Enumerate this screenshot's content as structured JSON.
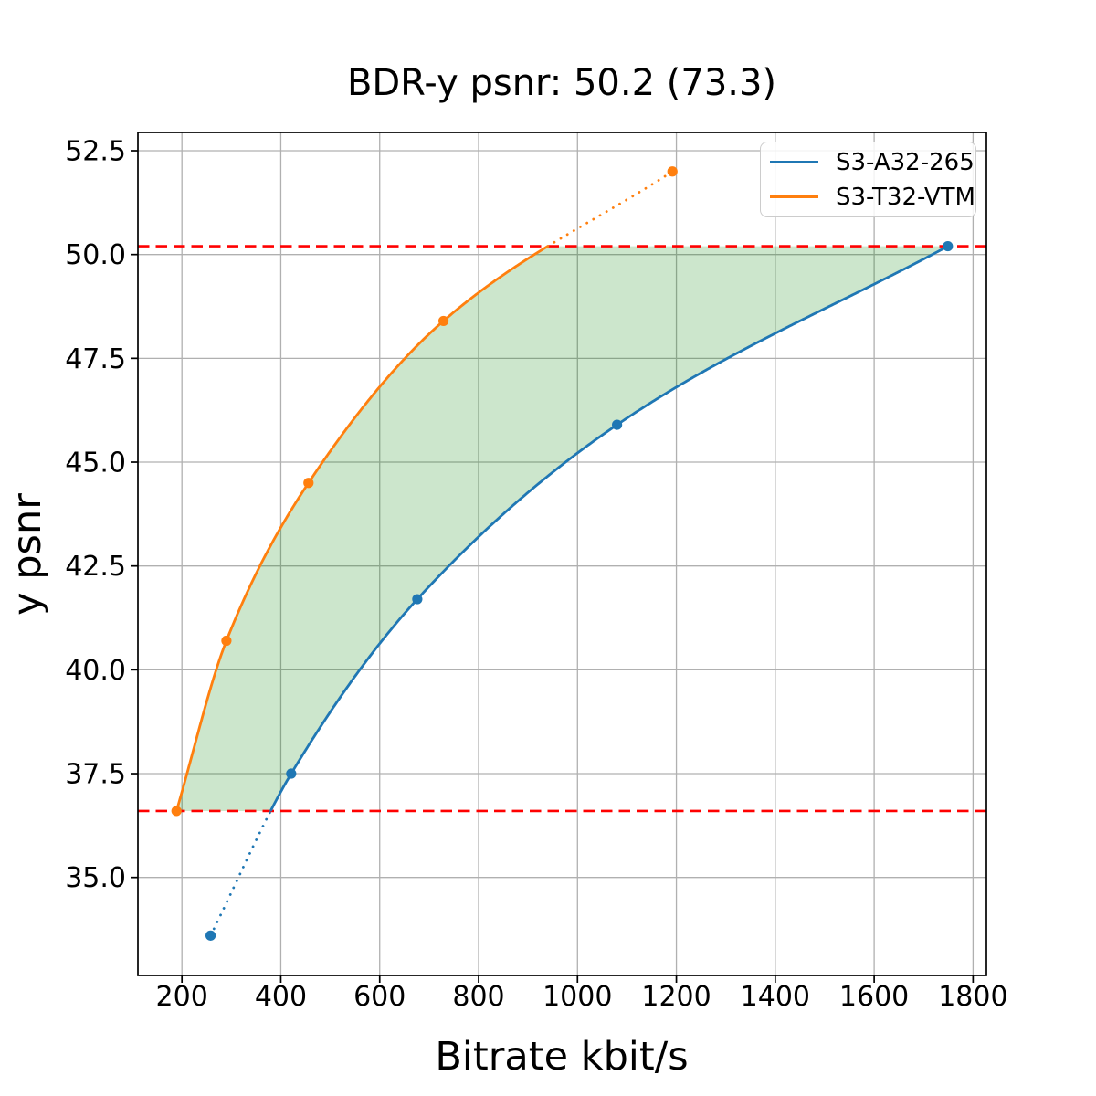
{
  "page": {
    "background": "#ffffff"
  },
  "chart_data": {
    "type": "line",
    "title": "BDR-y psnr: 50.2 (73.3)",
    "xlabel": "Bitrate kbit/s",
    "ylabel": "y psnr",
    "xlim": [
      111,
      1827
    ],
    "ylim": [
      32.64,
      52.94
    ],
    "grid": true,
    "grid_color": "#b0b0b0",
    "axis_color": "#000000",
    "x_ticks": [
      200,
      400,
      600,
      800,
      1000,
      1200,
      1400,
      1600,
      1800
    ],
    "x_tick_labels": [
      "200",
      "400",
      "600",
      "800",
      "1000",
      "1200",
      "1400",
      "1600",
      "1800"
    ],
    "y_ticks": [
      35.0,
      37.5,
      40.0,
      42.5,
      45.0,
      47.5,
      50.0,
      52.5
    ],
    "y_tick_labels": [
      "35.0",
      "37.5",
      "40.0",
      "42.5",
      "45.0",
      "47.5",
      "50.0",
      "52.5"
    ],
    "legend_position": "upper right",
    "series": [
      {
        "name": "S3-A32-265",
        "color": "#1f77b4",
        "marker": "circle",
        "line_style": "solid inside overlap, dotted outside",
        "points": [
          [
            258,
            33.6
          ],
          [
            421,
            37.5
          ],
          [
            676,
            41.7
          ],
          [
            1080,
            45.9
          ],
          [
            1749,
            50.2
          ]
        ]
      },
      {
        "name": "S3-T32-VTM",
        "color": "#ff7f0e",
        "marker": "circle",
        "line_style": "solid inside overlap, dotted outside",
        "points": [
          [
            189,
            36.6
          ],
          [
            290,
            40.7
          ],
          [
            456,
            44.5
          ],
          [
            729,
            48.4
          ],
          [
            1192,
            52.0
          ]
        ]
      }
    ],
    "overlap_band": {
      "y_min": 36.6,
      "y_max": 50.2,
      "fill_color": "#008000",
      "fill_opacity": 0.2
    },
    "hlines": [
      {
        "y": 50.2,
        "color": "#ff0000",
        "style": "dashed"
      },
      {
        "y": 36.6,
        "color": "#ff0000",
        "style": "dashed"
      }
    ]
  }
}
